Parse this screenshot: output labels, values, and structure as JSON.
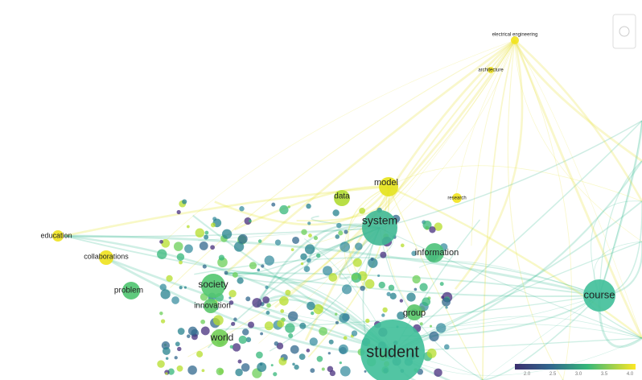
{
  "nodes": [
    {
      "label": "student"
    },
    {
      "label": "course"
    },
    {
      "label": "system"
    },
    {
      "label": "society"
    },
    {
      "label": "problem"
    },
    {
      "label": "world"
    },
    {
      "label": "model"
    },
    {
      "label": "data"
    },
    {
      "label": "information"
    },
    {
      "label": "group"
    },
    {
      "label": "education"
    },
    {
      "label": "collaborations"
    },
    {
      "label": "innovation"
    },
    {
      "label": "electrical engineering"
    },
    {
      "label": "architecture"
    },
    {
      "label": "research"
    }
  ],
  "legend": {
    "ticks": [
      "2.0",
      "2.5",
      "3.0",
      "3.5",
      "4.0"
    ]
  }
}
